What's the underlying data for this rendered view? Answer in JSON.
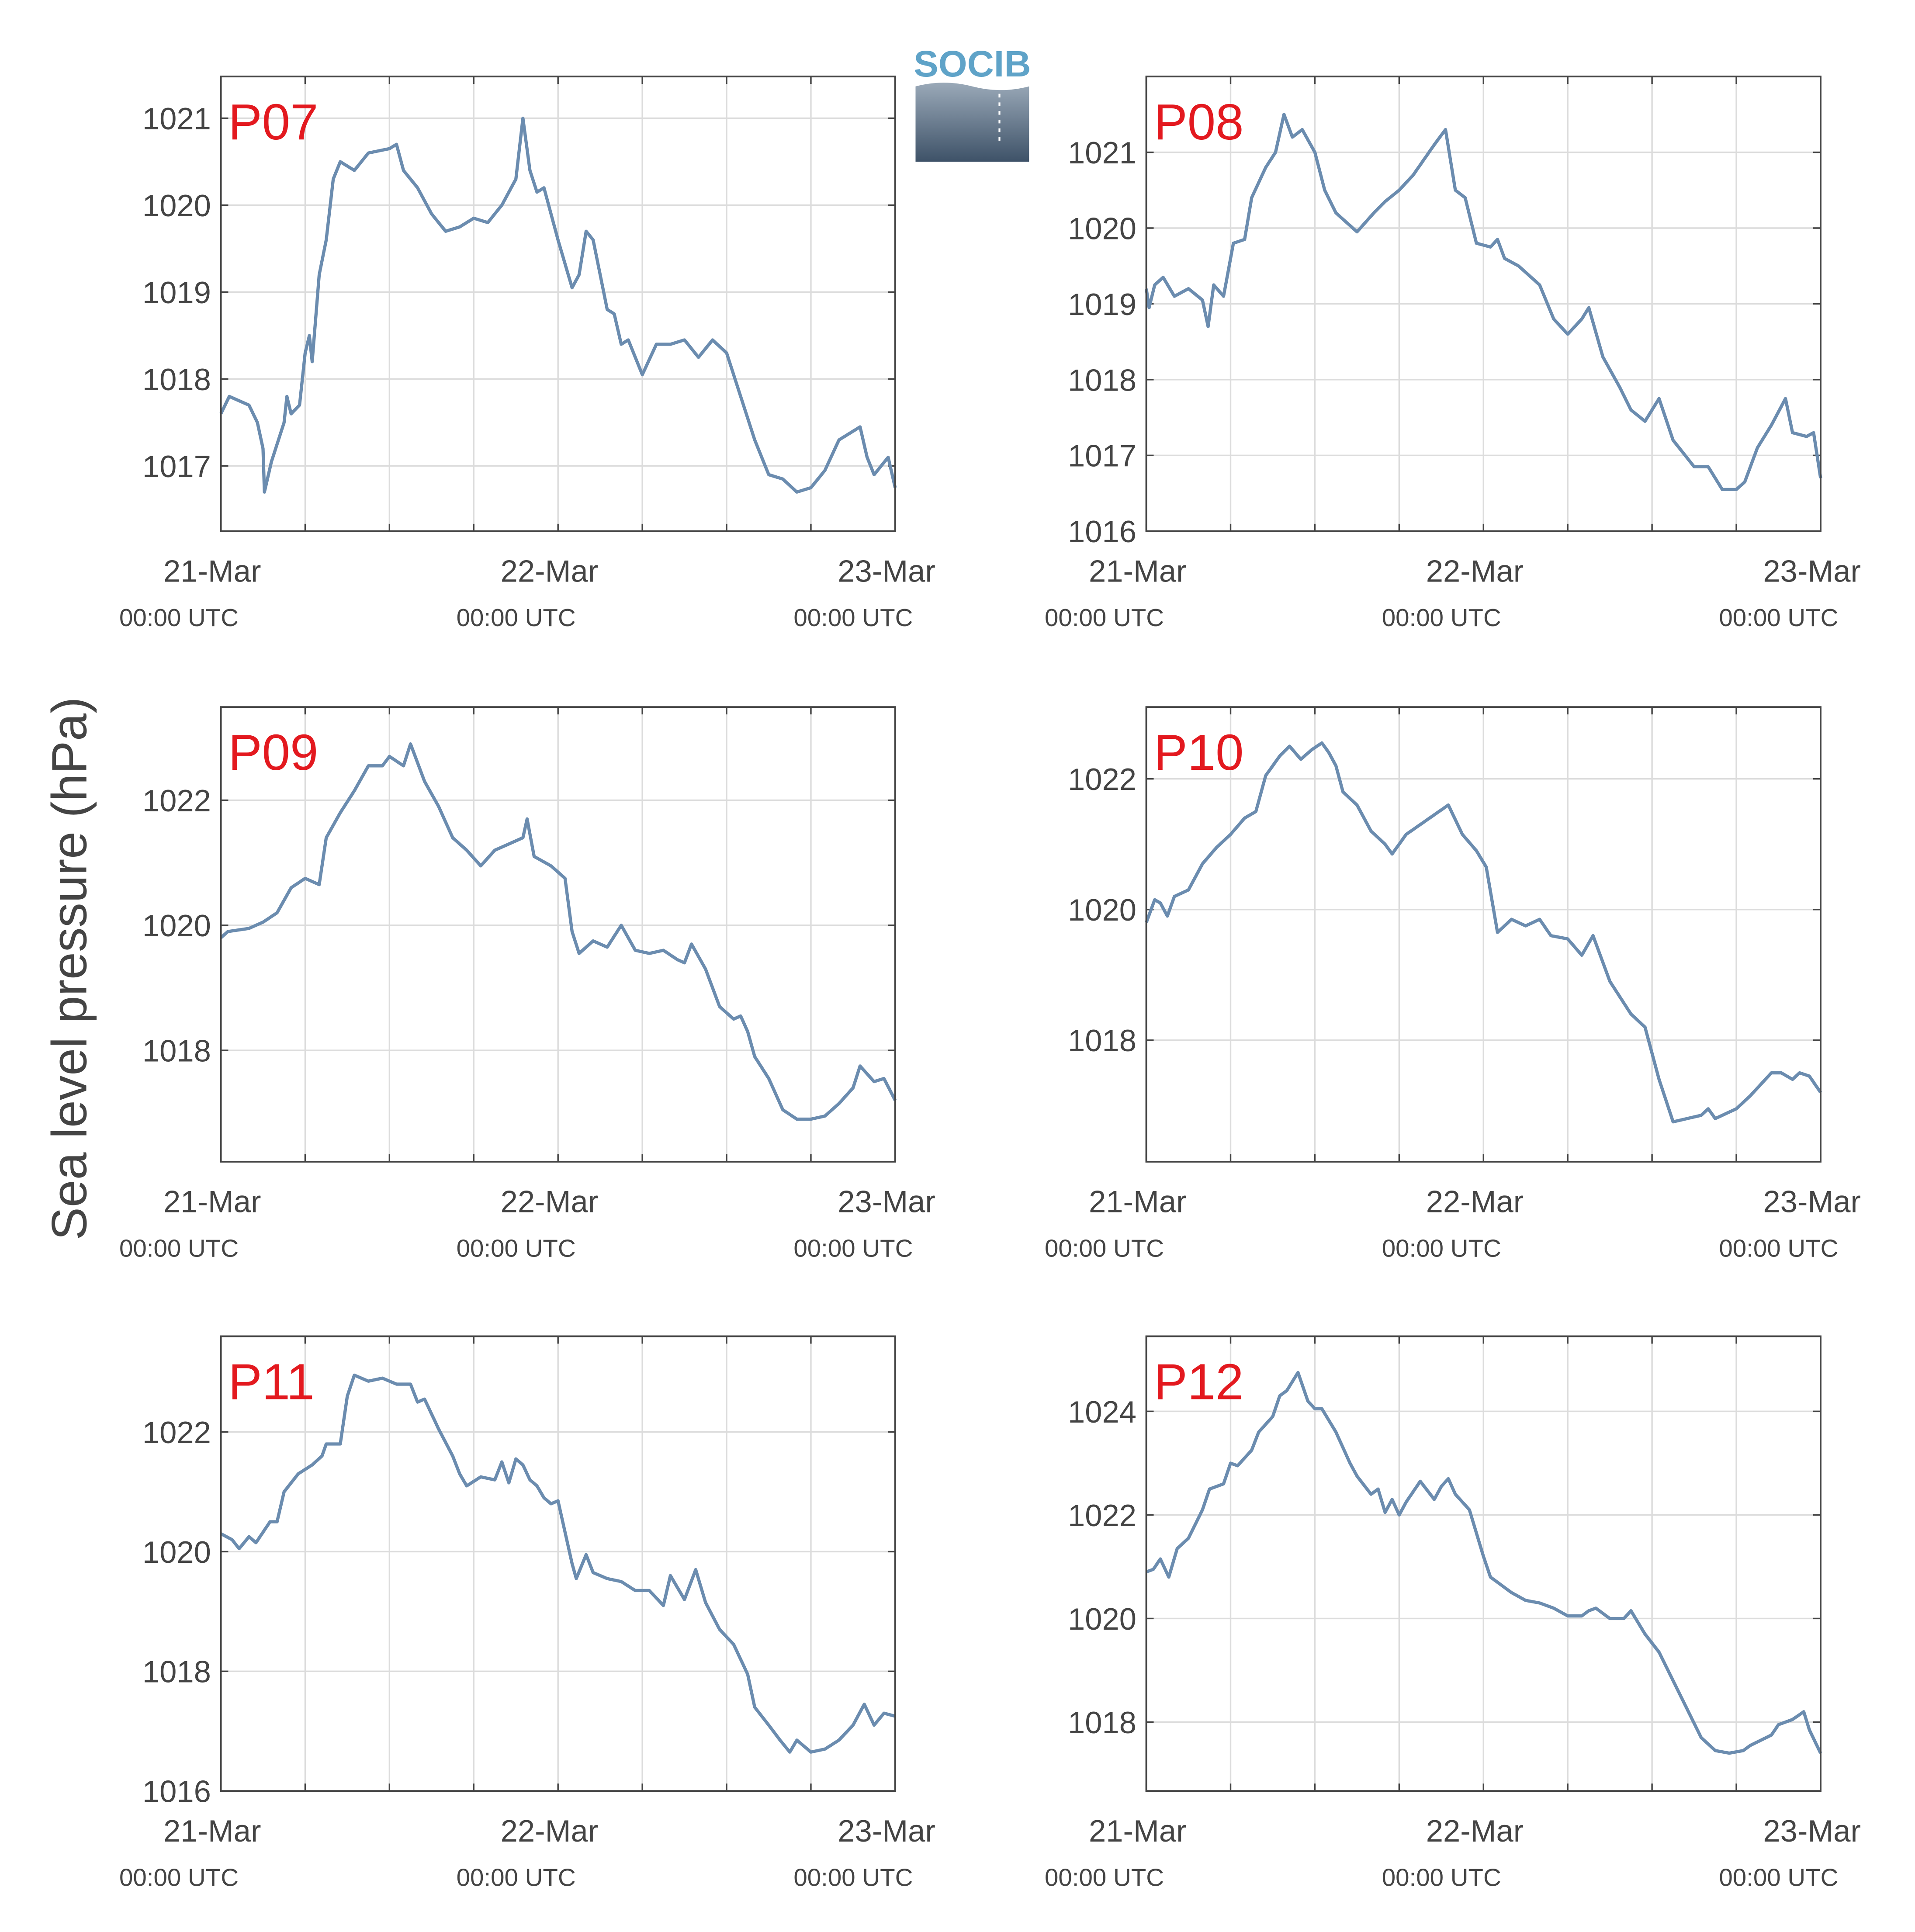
{
  "y_label": "Sea level pressure (hPa)",
  "logo_text": "SOCIB",
  "chart_data": [
    {
      "type": "line",
      "title": "P07",
      "color": "#6b8caf",
      "grid": true,
      "xlim": [
        0,
        48
      ],
      "ylim": [
        1016.25,
        1021.48
      ],
      "xticks": [
        {
          "value": 0,
          "label": "21-Mar"
        },
        {
          "value": 24,
          "label": "22-Mar"
        },
        {
          "value": 48,
          "label": "23-Mar"
        }
      ],
      "xtick_sublabels": [
        "00:00 UTC",
        "00:00 UTC",
        "00:00 UTC"
      ],
      "xgrid": [
        0,
        6,
        12,
        18,
        24,
        30,
        36,
        42,
        48
      ],
      "yticks": [
        1017,
        1018,
        1019,
        1020,
        1021
      ],
      "x": [
        0,
        0.6,
        2,
        2.6,
        3,
        3.1,
        3.6,
        4.5,
        4.7,
        5,
        5.6,
        6,
        6.3,
        6.5,
        7,
        7.5,
        8,
        8.5,
        9.5,
        10.5,
        12,
        12.5,
        13,
        14,
        15,
        16,
        17,
        18,
        19,
        20,
        21,
        21.5,
        22,
        22.5,
        23,
        24,
        25,
        25.5,
        26,
        26.5,
        27,
        27.5,
        28,
        28.5,
        29,
        30,
        31,
        32,
        33,
        34,
        35,
        36,
        37,
        38,
        39,
        40,
        41,
        42,
        43,
        44,
        45,
        45.5,
        46,
        46.5,
        47,
        47.5,
        48
      ],
      "values": [
        1017.6,
        1017.8,
        1017.7,
        1017.5,
        1017.2,
        1016.7,
        1017.05,
        1017.5,
        1017.8,
        1017.6,
        1017.7,
        1018.3,
        1018.5,
        1018.2,
        1019.2,
        1019.6,
        1020.3,
        1020.5,
        1020.4,
        1020.6,
        1020.65,
        1020.7,
        1020.4,
        1020.2,
        1019.9,
        1019.7,
        1019.75,
        1019.85,
        1019.8,
        1020.0,
        1020.3,
        1021.0,
        1020.4,
        1020.15,
        1020.2,
        1019.6,
        1019.05,
        1019.2,
        1019.7,
        1019.6,
        1019.2,
        1018.8,
        1018.75,
        1018.4,
        1018.45,
        1018.05,
        1018.4,
        1018.4,
        1018.45,
        1018.25,
        1018.45,
        1018.3,
        1017.8,
        1017.3,
        1016.9,
        1016.85,
        1016.7,
        1016.75,
        1016.95,
        1017.3,
        1017.4,
        1017.45,
        1017.1,
        1016.9,
        1017.0,
        1017.1,
        1016.75
      ]
    },
    {
      "type": "line",
      "title": "P08",
      "color": "#6b8caf",
      "grid": true,
      "xlim": [
        0,
        48
      ],
      "ylim": [
        1016,
        1022
      ],
      "xticks": [
        {
          "value": 0,
          "label": "21-Mar"
        },
        {
          "value": 24,
          "label": "22-Mar"
        },
        {
          "value": 48,
          "label": "23-Mar"
        }
      ],
      "xtick_sublabels": [
        "00:00 UTC",
        "00:00 UTC",
        "00:00 UTC"
      ],
      "xgrid": [
        0,
        6,
        12,
        18,
        24,
        30,
        36,
        42,
        48
      ],
      "yticks": [
        1016,
        1017,
        1018,
        1019,
        1020,
        1021
      ],
      "x": [
        0,
        0.2,
        0.6,
        1.2,
        2,
        3,
        4,
        4.4,
        4.8,
        5.5,
        6.2,
        7,
        7.5,
        8.5,
        9.2,
        9.8,
        10.4,
        11.1,
        12,
        12.7,
        13.5,
        15,
        16.2,
        17,
        18,
        19,
        20.5,
        21.3,
        22,
        22.7,
        23.5,
        24.5,
        25,
        25.5,
        26.5,
        28,
        29,
        30,
        31,
        31.5,
        32.5,
        33.7,
        34.5,
        35.5,
        36.5,
        37.5,
        39,
        40,
        41,
        42,
        42.6,
        43.5,
        44.5,
        45.5,
        46,
        47,
        47.5,
        48
      ],
      "values": [
        1019.2,
        1018.95,
        1019.25,
        1019.35,
        1019.1,
        1019.2,
        1019.05,
        1018.7,
        1019.25,
        1019.1,
        1019.8,
        1019.85,
        1020.4,
        1020.8,
        1021.0,
        1021.5,
        1021.2,
        1021.3,
        1021.0,
        1020.5,
        1020.2,
        1019.95,
        1020.2,
        1020.35,
        1020.5,
        1020.7,
        1021.1,
        1021.3,
        1020.5,
        1020.4,
        1019.8,
        1019.75,
        1019.85,
        1019.6,
        1019.5,
        1019.25,
        1018.8,
        1018.6,
        1018.8,
        1018.95,
        1018.3,
        1017.9,
        1017.6,
        1017.45,
        1017.75,
        1017.2,
        1016.85,
        1016.85,
        1016.55,
        1016.55,
        1016.65,
        1017.1,
        1017.4,
        1017.75,
        1017.3,
        1017.25,
        1017.3,
        1016.7
      ]
    },
    {
      "type": "line",
      "title": "P09",
      "color": "#6b8caf",
      "grid": true,
      "xlim": [
        0,
        48
      ],
      "ylim": [
        1016.22,
        1023.49
      ],
      "xticks": [
        {
          "value": 0,
          "label": "21-Mar"
        },
        {
          "value": 24,
          "label": "22-Mar"
        },
        {
          "value": 48,
          "label": "23-Mar"
        }
      ],
      "xtick_sublabels": [
        "00:00 UTC",
        "00:00 UTC",
        "00:00 UTC"
      ],
      "xgrid": [
        0,
        6,
        12,
        18,
        24,
        30,
        36,
        42,
        48
      ],
      "yticks": [
        1018,
        1020,
        1022
      ],
      "x": [
        0,
        0.5,
        2,
        3,
        4,
        5,
        6,
        7,
        7.5,
        8.5,
        9.5,
        10.5,
        11.5,
        12,
        13,
        13.5,
        14.5,
        15.5,
        16.5,
        17.5,
        18.5,
        19.5,
        20.5,
        21.5,
        21.8,
        22.3,
        23.5,
        24.5,
        25,
        25.5,
        26.5,
        27.5,
        28.5,
        29.5,
        30.5,
        31.5,
        32.5,
        33,
        33.5,
        34.5,
        35.5,
        36.5,
        37,
        37.5,
        38,
        39,
        40,
        41,
        42,
        43,
        44,
        45,
        45.5,
        46.5,
        47.2,
        48
      ],
      "values": [
        1019.8,
        1019.9,
        1019.95,
        1020.05,
        1020.2,
        1020.6,
        1020.75,
        1020.65,
        1021.4,
        1021.8,
        1022.15,
        1022.55,
        1022.55,
        1022.7,
        1022.55,
        1022.9,
        1022.3,
        1021.9,
        1021.4,
        1021.2,
        1020.95,
        1021.2,
        1021.3,
        1021.4,
        1021.7,
        1021.1,
        1020.95,
        1020.75,
        1019.9,
        1019.55,
        1019.75,
        1019.65,
        1020.0,
        1019.6,
        1019.55,
        1019.6,
        1019.45,
        1019.4,
        1019.7,
        1019.3,
        1018.7,
        1018.5,
        1018.55,
        1018.3,
        1017.9,
        1017.55,
        1017.05,
        1016.9,
        1016.9,
        1016.95,
        1017.15,
        1017.4,
        1017.75,
        1017.5,
        1017.55,
        1017.2
      ]
    },
    {
      "type": "line",
      "title": "P10",
      "color": "#6b8caf",
      "grid": true,
      "xlim": [
        0,
        48
      ],
      "ylim": [
        1016.14,
        1023.1
      ],
      "xticks": [
        {
          "value": 0,
          "label": "21-Mar"
        },
        {
          "value": 24,
          "label": "22-Mar"
        },
        {
          "value": 48,
          "label": "23-Mar"
        }
      ],
      "xtick_sublabels": [
        "00:00 UTC",
        "00:00 UTC",
        "00:00 UTC"
      ],
      "xgrid": [
        0,
        6,
        12,
        18,
        24,
        30,
        36,
        42,
        48
      ],
      "yticks": [
        1018,
        1020,
        1022
      ],
      "x": [
        0,
        0.6,
        1,
        1.5,
        2,
        3,
        4,
        5,
        6,
        7,
        7.8,
        8.5,
        9.5,
        10.2,
        11,
        11.8,
        12.5,
        13,
        13.5,
        14,
        15,
        16,
        17,
        17.5,
        18.5,
        19.5,
        20.5,
        21.5,
        22.5,
        23.5,
        24.2,
        25,
        26,
        27,
        28,
        28.8,
        30,
        31,
        31.8,
        33,
        34.5,
        35.5,
        36.5,
        37.5,
        38.5,
        39.5,
        40,
        40.5,
        42,
        43,
        44.5,
        45.2,
        46,
        46.5,
        47.2,
        48
      ],
      "values": [
        1019.8,
        1020.15,
        1020.1,
        1019.9,
        1020.2,
        1020.3,
        1020.7,
        1020.95,
        1021.15,
        1021.4,
        1021.5,
        1022.05,
        1022.35,
        1022.5,
        1022.3,
        1022.45,
        1022.55,
        1022.4,
        1022.2,
        1021.8,
        1021.6,
        1021.2,
        1021.0,
        1020.85,
        1021.15,
        1021.3,
        1021.45,
        1021.6,
        1021.15,
        1020.9,
        1020.65,
        1019.65,
        1019.85,
        1019.75,
        1019.85,
        1019.6,
        1019.55,
        1019.3,
        1019.6,
        1018.9,
        1018.4,
        1018.2,
        1017.4,
        1016.75,
        1016.8,
        1016.85,
        1016.95,
        1016.8,
        1016.95,
        1017.15,
        1017.5,
        1017.5,
        1017.4,
        1017.5,
        1017.45,
        1017.2
      ]
    },
    {
      "type": "line",
      "title": "P11",
      "color": "#6b8caf",
      "grid": true,
      "xlim": [
        0,
        48
      ],
      "ylim": [
        1016,
        1023.6
      ],
      "xticks": [
        {
          "value": 0,
          "label": "21-Mar"
        },
        {
          "value": 24,
          "label": "22-Mar"
        },
        {
          "value": 48,
          "label": "23-Mar"
        }
      ],
      "xtick_sublabels": [
        "00:00 UTC",
        "00:00 UTC",
        "00:00 UTC"
      ],
      "xgrid": [
        0,
        6,
        12,
        18,
        24,
        30,
        36,
        42,
        48
      ],
      "yticks": [
        1016,
        1018,
        1020,
        1022
      ],
      "x": [
        0,
        0.8,
        1.3,
        2,
        2.5,
        3.5,
        4,
        4.5,
        5.5,
        6.5,
        7.2,
        7.5,
        8.5,
        9,
        9.5,
        10.5,
        11.5,
        12.5,
        13.5,
        14,
        14.5,
        15.5,
        16.5,
        17,
        17.5,
        18.5,
        19.5,
        20,
        20.5,
        21,
        21.5,
        22,
        22.5,
        23,
        23.5,
        24,
        25,
        25.3,
        26,
        26.5,
        27.5,
        28.5,
        29.5,
        30.5,
        31.5,
        32,
        33,
        33.8,
        34.5,
        35.5,
        36.5,
        37.5,
        38,
        39,
        39.8,
        40.5,
        41,
        42,
        43,
        44,
        45,
        45.8,
        46.5,
        47.2,
        48
      ],
      "values": [
        1020.3,
        1020.2,
        1020.05,
        1020.25,
        1020.15,
        1020.5,
        1020.5,
        1021.0,
        1021.3,
        1021.45,
        1021.6,
        1021.8,
        1021.8,
        1022.6,
        1022.95,
        1022.85,
        1022.9,
        1022.8,
        1022.8,
        1022.5,
        1022.55,
        1022.05,
        1021.6,
        1021.3,
        1021.1,
        1021.25,
        1021.2,
        1021.5,
        1021.15,
        1021.55,
        1021.45,
        1021.2,
        1021.1,
        1020.9,
        1020.8,
        1020.85,
        1019.8,
        1019.55,
        1019.95,
        1019.65,
        1019.55,
        1019.5,
        1019.35,
        1019.35,
        1019.1,
        1019.6,
        1019.2,
        1019.7,
        1019.15,
        1018.7,
        1018.45,
        1017.95,
        1017.4,
        1017.1,
        1016.85,
        1016.65,
        1016.85,
        1016.65,
        1016.7,
        1016.85,
        1017.1,
        1017.45,
        1017.1,
        1017.3,
        1017.25
      ]
    },
    {
      "type": "line",
      "title": "P12",
      "color": "#6b8caf",
      "grid": true,
      "xlim": [
        0,
        48
      ],
      "ylim": [
        1016.67,
        1025.45
      ],
      "xticks": [
        {
          "value": 0,
          "label": "21-Mar"
        },
        {
          "value": 24,
          "label": "22-Mar"
        },
        {
          "value": 48,
          "label": "23-Mar"
        }
      ],
      "xtick_sublabels": [
        "00:00 UTC",
        "00:00 UTC",
        "00:00 UTC"
      ],
      "xgrid": [
        0,
        6,
        12,
        18,
        24,
        30,
        36,
        42,
        48
      ],
      "yticks": [
        1018,
        1020,
        1022,
        1024
      ],
      "x": [
        0,
        0.5,
        1,
        1.6,
        2.2,
        3,
        4,
        4.5,
        5.5,
        6,
        6.5,
        7.5,
        8,
        9,
        9.5,
        10,
        10.8,
        11.5,
        12,
        12.5,
        13.5,
        14.5,
        15,
        16,
        16.5,
        17,
        17.5,
        18,
        18.5,
        19.5,
        20.5,
        21,
        21.5,
        22,
        23,
        24,
        24.5,
        25,
        26,
        27,
        28,
        29,
        30,
        31,
        31.5,
        32,
        33,
        34,
        34.5,
        35.5,
        36.5,
        37.5,
        38.5,
        39.5,
        40.5,
        41.5,
        42.5,
        43,
        44.5,
        45,
        46,
        46.8,
        47.2,
        48
      ],
      "values": [
        1020.9,
        1020.95,
        1021.15,
        1020.8,
        1021.35,
        1021.55,
        1022.1,
        1022.5,
        1022.6,
        1023.0,
        1022.95,
        1023.25,
        1023.6,
        1023.9,
        1024.3,
        1024.4,
        1024.75,
        1024.2,
        1024.05,
        1024.05,
        1023.6,
        1023.0,
        1022.75,
        1022.4,
        1022.5,
        1022.05,
        1022.3,
        1022.0,
        1022.25,
        1022.65,
        1022.3,
        1022.55,
        1022.7,
        1022.4,
        1022.1,
        1021.2,
        1020.8,
        1020.7,
        1020.5,
        1020.35,
        1020.3,
        1020.2,
        1020.05,
        1020.05,
        1020.15,
        1020.2,
        1020.0,
        1020.0,
        1020.15,
        1019.7,
        1019.35,
        1018.8,
        1018.25,
        1017.7,
        1017.45,
        1017.4,
        1017.45,
        1017.55,
        1017.75,
        1017.95,
        1018.05,
        1018.2,
        1017.85,
        1017.4
      ]
    }
  ]
}
